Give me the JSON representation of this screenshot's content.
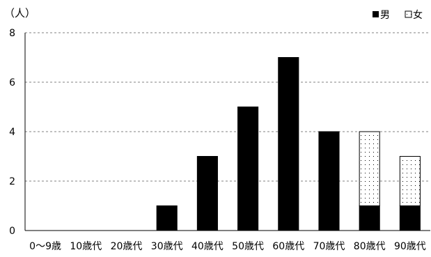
{
  "chart_data": {
    "type": "bar",
    "stacked": true,
    "y_unit_label": "（人）",
    "categories": [
      "0～9歳",
      "10歳代",
      "20歳代",
      "30歳代",
      "40歳代",
      "50歳代",
      "60歳代",
      "70歳代",
      "80歳代",
      "90歳代"
    ],
    "series": [
      {
        "name": "男",
        "values": [
          0,
          0,
          0,
          1,
          3,
          5,
          7,
          4,
          1,
          1
        ],
        "fill": "solid",
        "color": "#000000"
      },
      {
        "name": "女",
        "values": [
          0,
          0,
          0,
          0,
          0,
          0,
          0,
          0,
          3,
          2
        ],
        "fill": "dotted",
        "color": "#ffffff"
      }
    ],
    "ylim": [
      0,
      8
    ],
    "y_ticks": [
      0,
      2,
      4,
      6,
      8
    ],
    "grid": true,
    "grid_style": "dashed",
    "legend_position": "top-right",
    "xlabel": "",
    "ylabel": ""
  }
}
